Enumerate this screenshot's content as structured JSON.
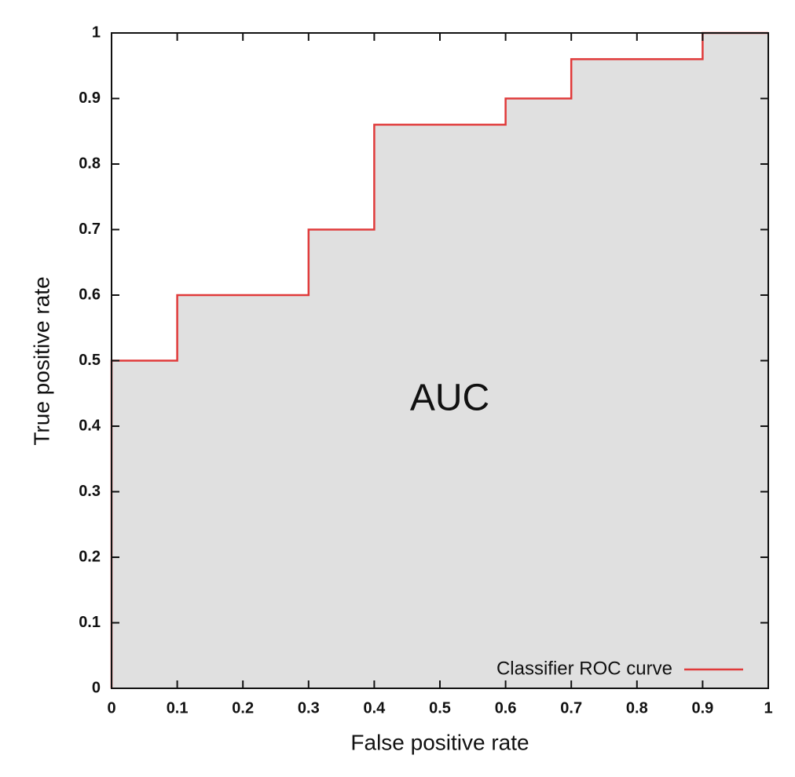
{
  "chart_data": {
    "type": "line",
    "xlabel": "False positive rate",
    "ylabel": "True positive rate",
    "annotation": "AUC",
    "x": [
      0,
      0,
      0.1,
      0.1,
      0.3,
      0.3,
      0.4,
      0.4,
      0.6,
      0.6,
      0.7,
      0.7,
      0.9,
      0.9,
      1
    ],
    "series": [
      {
        "name": "Classifier ROC curve",
        "color": "#e03a3a",
        "values": [
          0,
          0.5,
          0.5,
          0.6,
          0.6,
          0.7,
          0.7,
          0.86,
          0.86,
          0.9,
          0.9,
          0.96,
          0.96,
          1,
          1
        ]
      }
    ],
    "area_fill": "#e0e0e0",
    "xlim": [
      0,
      1
    ],
    "ylim": [
      0,
      1
    ],
    "xticks": [
      0,
      0.1,
      0.2,
      0.3,
      0.4,
      0.5,
      0.6,
      0.7,
      0.8,
      0.9,
      1
    ],
    "yticks": [
      0,
      0.1,
      0.2,
      0.3,
      0.4,
      0.5,
      0.6,
      0.7,
      0.8,
      0.9,
      1
    ],
    "legend": "lower right",
    "grid": false
  }
}
